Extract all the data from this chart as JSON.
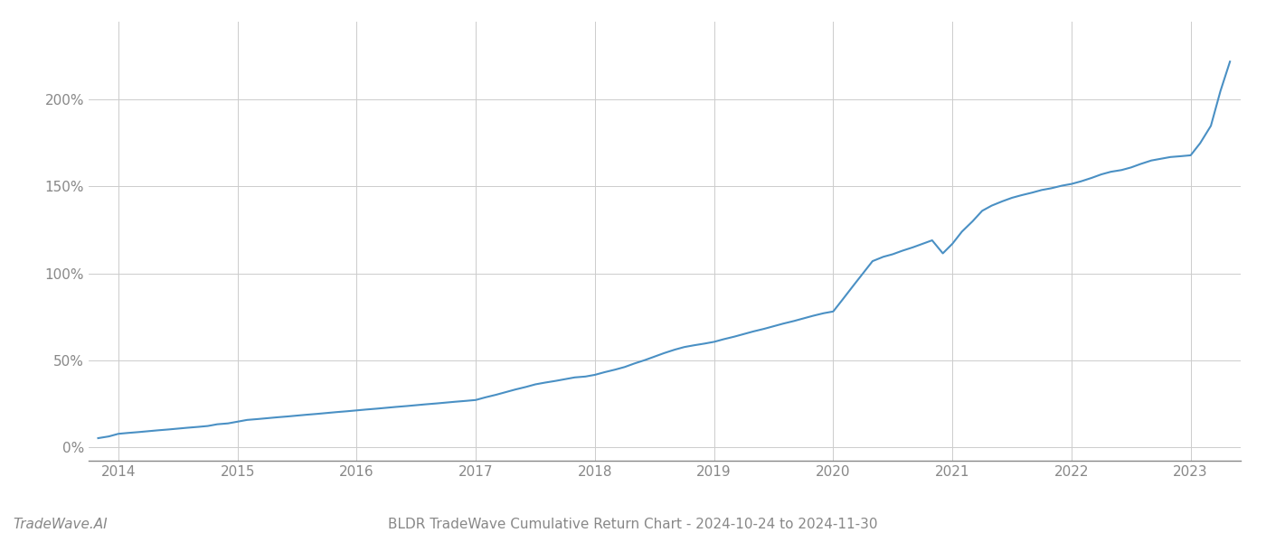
{
  "title": "BLDR TradeWave Cumulative Return Chart - 2024-10-24 to 2024-11-30",
  "watermark": "TradeWave.AI",
  "line_color": "#4a90c4",
  "background_color": "#ffffff",
  "grid_color": "#cccccc",
  "x_years": [
    2014,
    2015,
    2016,
    2017,
    2018,
    2019,
    2020,
    2021,
    2022,
    2023
  ],
  "x_data": [
    2013.83,
    2013.92,
    2014.0,
    2014.08,
    2014.17,
    2014.25,
    2014.33,
    2014.42,
    2014.5,
    2014.58,
    2014.67,
    2014.75,
    2014.83,
    2014.92,
    2015.0,
    2015.08,
    2015.17,
    2015.25,
    2015.33,
    2015.42,
    2015.5,
    2015.58,
    2015.67,
    2015.75,
    2015.83,
    2015.92,
    2016.0,
    2016.08,
    2016.17,
    2016.25,
    2016.33,
    2016.42,
    2016.5,
    2016.58,
    2016.67,
    2016.75,
    2016.83,
    2016.92,
    2017.0,
    2017.08,
    2017.17,
    2017.25,
    2017.33,
    2017.42,
    2017.5,
    2017.58,
    2017.67,
    2017.75,
    2017.83,
    2017.92,
    2018.0,
    2018.08,
    2018.17,
    2018.25,
    2018.33,
    2018.42,
    2018.5,
    2018.58,
    2018.67,
    2018.75,
    2018.83,
    2018.92,
    2019.0,
    2019.08,
    2019.17,
    2019.25,
    2019.33,
    2019.42,
    2019.5,
    2019.58,
    2019.67,
    2019.75,
    2019.83,
    2019.92,
    2020.0,
    2020.08,
    2020.17,
    2020.25,
    2020.33,
    2020.42,
    2020.5,
    2020.58,
    2020.67,
    2020.75,
    2020.83,
    2020.92,
    2021.0,
    2021.08,
    2021.17,
    2021.25,
    2021.33,
    2021.42,
    2021.5,
    2021.58,
    2021.67,
    2021.75,
    2021.83,
    2021.92,
    2022.0,
    2022.08,
    2022.17,
    2022.25,
    2022.33,
    2022.42,
    2022.5,
    2022.58,
    2022.67,
    2022.75,
    2022.83,
    2022.92,
    2023.0,
    2023.08,
    2023.17,
    2023.25,
    2023.33
  ],
  "y_data": [
    5.0,
    6.0,
    7.5,
    8.0,
    8.5,
    9.0,
    9.5,
    10.0,
    10.5,
    11.0,
    11.5,
    12.0,
    13.0,
    13.5,
    14.5,
    15.5,
    16.0,
    16.5,
    17.0,
    17.5,
    18.0,
    18.5,
    19.0,
    19.5,
    20.0,
    20.5,
    21.0,
    21.5,
    22.0,
    22.5,
    23.0,
    23.5,
    24.0,
    24.5,
    25.0,
    25.5,
    26.0,
    26.5,
    27.0,
    28.5,
    30.0,
    31.5,
    33.0,
    34.5,
    36.0,
    37.0,
    38.0,
    39.0,
    40.0,
    40.5,
    41.5,
    43.0,
    44.5,
    46.0,
    48.0,
    50.0,
    52.0,
    54.0,
    56.0,
    57.5,
    58.5,
    59.5,
    60.5,
    62.0,
    63.5,
    65.0,
    66.5,
    68.0,
    69.5,
    71.0,
    72.5,
    74.0,
    75.5,
    77.0,
    78.0,
    85.0,
    93.0,
    100.0,
    107.0,
    109.5,
    111.0,
    113.0,
    115.0,
    117.0,
    119.0,
    111.5,
    117.0,
    124.0,
    130.0,
    136.0,
    139.0,
    141.5,
    143.5,
    145.0,
    146.5,
    148.0,
    149.0,
    150.5,
    151.5,
    153.0,
    155.0,
    157.0,
    158.5,
    159.5,
    161.0,
    163.0,
    165.0,
    166.0,
    167.0,
    167.5,
    168.0,
    175.0,
    185.0,
    205.0,
    222.0
  ],
  "ylim": [
    -8,
    245
  ],
  "yticks": [
    0,
    50,
    100,
    150,
    200
  ],
  "ytick_labels": [
    "0%",
    "50%",
    "100%",
    "150%",
    "200%"
  ],
  "xlim": [
    2013.75,
    2023.42
  ],
  "title_fontsize": 11,
  "watermark_fontsize": 11,
  "axis_fontsize": 11,
  "line_width": 1.5
}
